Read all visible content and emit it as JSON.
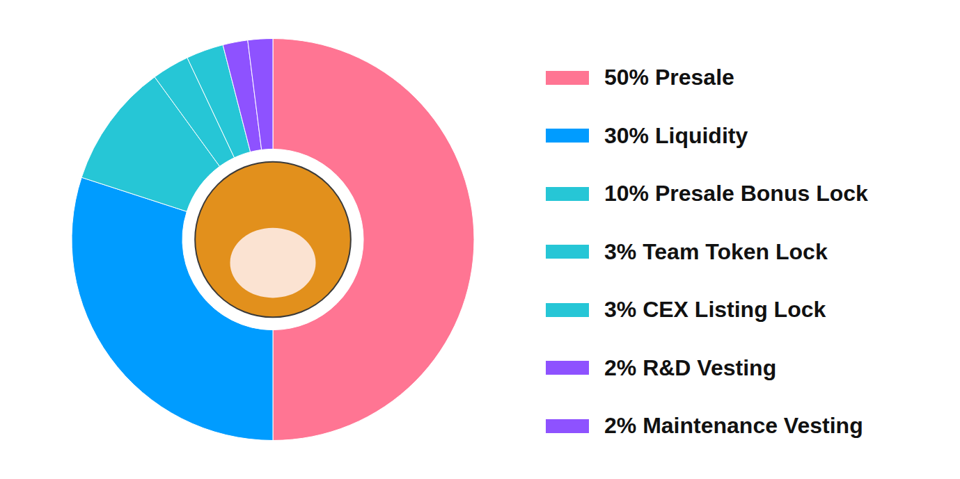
{
  "chart_data": {
    "type": "doughnut",
    "categories": [
      "50% Presale",
      "30% Liquidity",
      "10% Presale Bonus Lock",
      "3% Team Token Lock",
      "3% CEX Listing Lock",
      "2% R&D Vesting",
      "2% Maintenance Vesting"
    ],
    "values": [
      50,
      30,
      10,
      3,
      3,
      2,
      2
    ],
    "colors": [
      "#ff7593",
      "#009cff",
      "#26c6d6",
      "#26c6d6",
      "#26c6d6",
      "#8e52ff",
      "#8e52ff"
    ],
    "legend": "right"
  }
}
